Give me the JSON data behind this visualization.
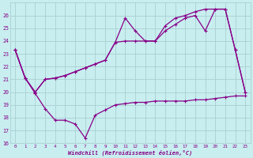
{
  "bg_color": "#c8eef0",
  "grid_color": "#aacfd1",
  "line_color": "#880088",
  "xlabel": "Windchill (Refroidissement éolien,°C)",
  "ylim": [
    16,
    27
  ],
  "xlim": [
    -0.5,
    23.5
  ],
  "yticks": [
    16,
    17,
    18,
    19,
    20,
    21,
    22,
    23,
    24,
    25,
    26
  ],
  "xticks": [
    0,
    1,
    2,
    3,
    4,
    5,
    6,
    7,
    8,
    9,
    10,
    11,
    12,
    13,
    14,
    15,
    16,
    17,
    18,
    19,
    20,
    21,
    22,
    23
  ],
  "line1_x": [
    0,
    1,
    2,
    3,
    4,
    5,
    6,
    7,
    8,
    9,
    10,
    11,
    12,
    13,
    14,
    15,
    16,
    17,
    18,
    19,
    20,
    21,
    22,
    23
  ],
  "line1_y": [
    23.3,
    21.1,
    19.9,
    18.7,
    17.8,
    17.8,
    17.5,
    16.4,
    18.2,
    18.6,
    19.0,
    19.1,
    19.2,
    19.2,
    19.3,
    19.3,
    19.3,
    19.3,
    19.4,
    19.4,
    19.5,
    19.6,
    19.7,
    19.7
  ],
  "line2_x": [
    0,
    1,
    2,
    3,
    4,
    5,
    6,
    7,
    8,
    9,
    10,
    11,
    12,
    13,
    14,
    15,
    16,
    17,
    18,
    19,
    20,
    21,
    22,
    23
  ],
  "line2_y": [
    23.3,
    21.1,
    20.0,
    21.0,
    21.1,
    21.3,
    21.6,
    21.9,
    22.2,
    22.5,
    23.9,
    25.8,
    24.8,
    24.0,
    24.0,
    25.2,
    25.8,
    26.0,
    26.3,
    26.5,
    26.5,
    26.5,
    23.3,
    20.0
  ],
  "line3_x": [
    0,
    1,
    2,
    3,
    4,
    5,
    6,
    7,
    8,
    9,
    10,
    11,
    12,
    13,
    14,
    15,
    16,
    17,
    18,
    19,
    20,
    21,
    22,
    23
  ],
  "line3_y": [
    23.3,
    21.1,
    20.0,
    21.0,
    21.1,
    21.3,
    21.6,
    21.9,
    22.2,
    22.5,
    23.9,
    24.0,
    24.0,
    24.0,
    24.0,
    24.8,
    25.3,
    25.8,
    26.0,
    24.8,
    26.5,
    26.5,
    23.3,
    20.0
  ]
}
